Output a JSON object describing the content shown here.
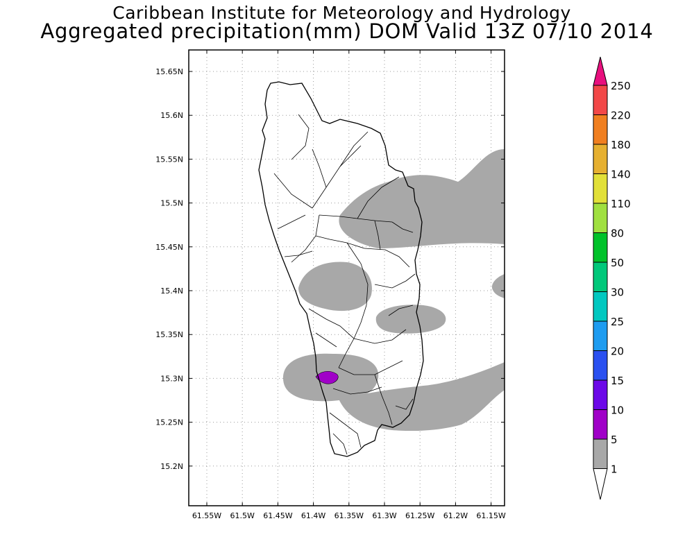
{
  "header": {
    "line1": "Caribbean Institute for Meteorology and Hydrology",
    "line2": "Aggregated precipitation(mm) DOM Valid 13Z 07/10 2014"
  },
  "map": {
    "lat_ticks": [
      "15.65N",
      "15.6N",
      "15.55N",
      "15.5N",
      "15.45N",
      "15.4N",
      "15.35N",
      "15.3N",
      "15.25N",
      "15.2N"
    ],
    "lon_ticks": [
      "61.55W",
      "61.5W",
      "61.45W",
      "61.4W",
      "61.35W",
      "61.3W",
      "61.25W",
      "61.2W",
      "61.15W"
    ],
    "grid": true,
    "region": "Dominica"
  },
  "colorbar": {
    "labels": [
      "250",
      "220",
      "180",
      "140",
      "110",
      "80",
      "50",
      "30",
      "25",
      "20",
      "15",
      "10",
      "5",
      "1"
    ],
    "colors": {
      "top_arrow": "#e8107e",
      "250": "#f24848",
      "220": "#f07f20",
      "180": "#e6b030",
      "140": "#e2e038",
      "110": "#a0e040",
      "80": "#00c22a",
      "50": "#00c87a",
      "30": "#00c8c0",
      "25": "#1e9cf0",
      "20": "#2a50f0",
      "15": "#6c08e8",
      "10": "#a000c8",
      "5": "#a8a8a8",
      "bottom_arrow": "#ffffff"
    }
  },
  "precip_colors": {
    "light": "#a8a8a8",
    "moderate": "#a000c8"
  }
}
